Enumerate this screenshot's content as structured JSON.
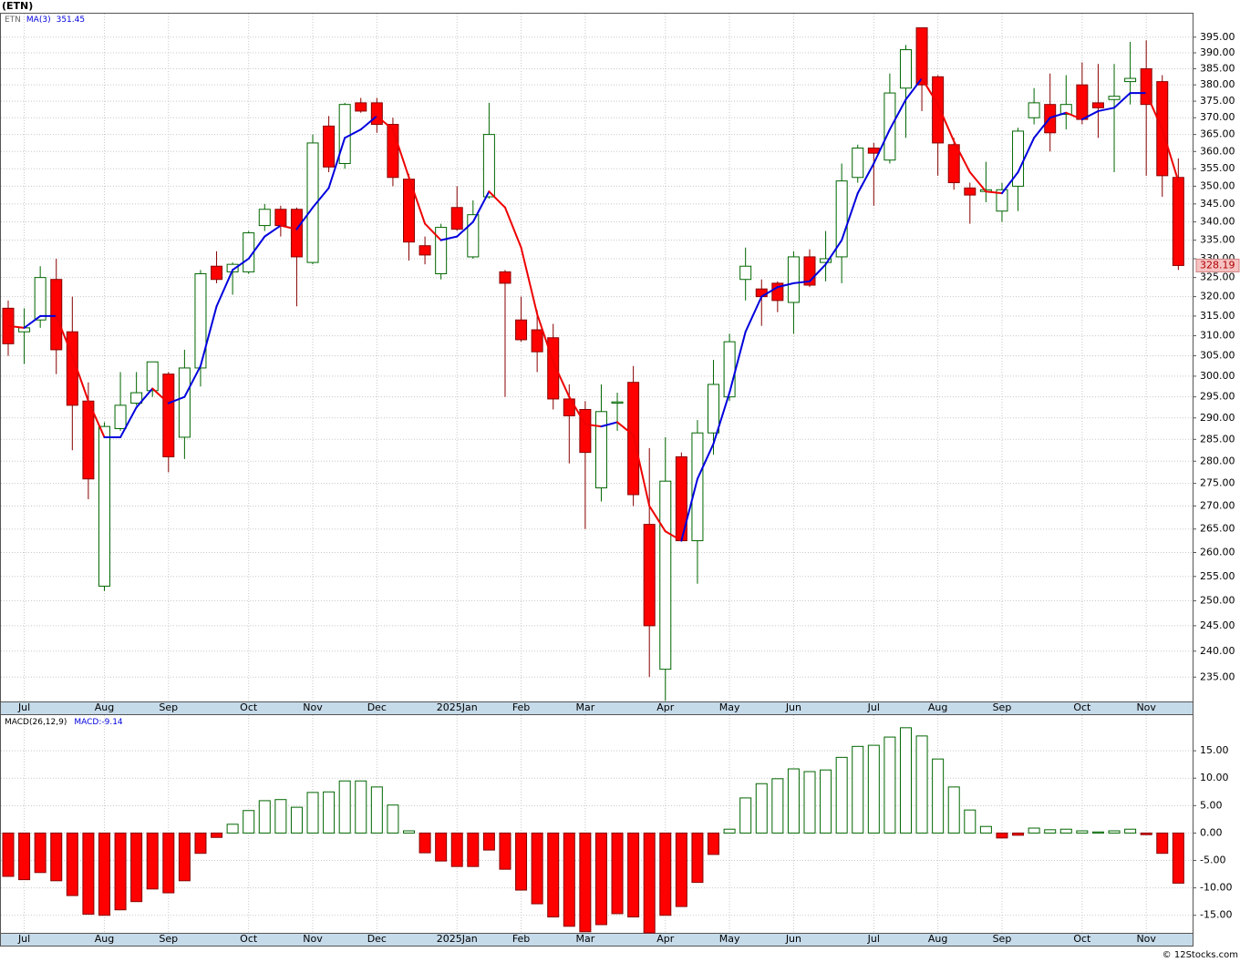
{
  "title": "(ETN)",
  "footer": "© 12Stocks.com",
  "chart_data": [
    {
      "type": "candlestick",
      "symbol": "ETN",
      "log": true,
      "grid": true,
      "up_color": "#006600",
      "down_color": "#ff0000",
      "categories": [
        null,
        "Jul",
        null,
        null,
        null,
        null,
        "Aug",
        null,
        null,
        null,
        "Sep",
        null,
        null,
        null,
        null,
        "Oct",
        null,
        null,
        null,
        "Nov",
        null,
        null,
        null,
        "Dec",
        null,
        null,
        null,
        null,
        "2025Jan",
        null,
        null,
        null,
        "Feb",
        null,
        null,
        null,
        "Mar",
        null,
        null,
        null,
        null,
        "Apr",
        null,
        null,
        null,
        "May",
        null,
        null,
        null,
        "Jun",
        null,
        null,
        null,
        null,
        "Jul",
        null,
        null,
        null,
        "Aug",
        null,
        null,
        null,
        "Sep",
        null,
        null,
        null,
        null,
        "Oct",
        null,
        null,
        null,
        "Nov",
        null,
        null
      ],
      "open": [
        317,
        311,
        314,
        324.5,
        311,
        294,
        253,
        287.5,
        293.5,
        296.5,
        300.5,
        285.5,
        302,
        328,
        326.5,
        326.5,
        339,
        343.5,
        343.5,
        329,
        367.5,
        356.5,
        374.5,
        374.5,
        368,
        352,
        333.5,
        326,
        344,
        330.5,
        347,
        326.5,
        314,
        311.5,
        309.5,
        294.5,
        292,
        274,
        293.5,
        298.5,
        266,
        236.5,
        281,
        262.5,
        286.5,
        295,
        324.5,
        322,
        323.5,
        318.5,
        330.5,
        329,
        330.5,
        352.5,
        361,
        357.5,
        379,
        398,
        382.5,
        362,
        349.5,
        348.5,
        343,
        350,
        370,
        374,
        371,
        380,
        374.5,
        375.5,
        381,
        385,
        381,
        352.5
      ],
      "high": [
        319,
        317,
        328,
        330,
        320,
        298.5,
        289,
        301,
        301,
        303.5,
        301,
        306.5,
        327,
        332,
        329,
        337.5,
        345,
        344.5,
        344,
        365,
        370.5,
        374.5,
        376,
        376,
        370,
        353.5,
        336,
        339.5,
        350,
        346,
        374.5,
        327,
        320,
        316.5,
        313,
        298,
        294,
        298,
        296,
        302.5,
        283,
        285.5,
        282,
        289.5,
        304,
        310.5,
        333,
        324.5,
        324,
        332,
        332.5,
        337.5,
        356.5,
        362,
        362.5,
        383.5,
        392.5,
        398,
        383,
        364,
        351,
        357,
        351,
        367,
        379,
        383.5,
        383,
        387,
        386.5,
        386.5,
        393.5,
        394,
        383,
        358
      ],
      "low": [
        305,
        303,
        312,
        300.5,
        282.5,
        271.5,
        252,
        287,
        293,
        295,
        277.5,
        280.5,
        297.5,
        323.5,
        320.5,
        326,
        337.5,
        336,
        317.5,
        328.5,
        354,
        355,
        371.5,
        365.5,
        350,
        329.5,
        328.5,
        324.5,
        337.5,
        330,
        346.5,
        295,
        308.5,
        301,
        292,
        279.5,
        265,
        271,
        287,
        270,
        235,
        230.5,
        262.5,
        253.5,
        281.5,
        294,
        319,
        312.5,
        316,
        310.5,
        322.5,
        324,
        323.5,
        351,
        344.5,
        356.5,
        364,
        372,
        353,
        349,
        339.5,
        345.5,
        340,
        343,
        368,
        360,
        366.5,
        368,
        364,
        354,
        374,
        353,
        347,
        327
      ],
      "close": [
        308,
        312,
        325,
        306.5,
        293,
        276,
        288,
        293,
        296,
        303.5,
        281,
        302,
        326,
        324.5,
        328.5,
        337,
        343.5,
        339,
        330.5,
        362.5,
        355.5,
        374,
        372,
        368,
        352.5,
        334.5,
        331,
        338.5,
        338,
        342,
        365,
        323.5,
        309,
        306,
        294.5,
        290.5,
        282,
        291.5,
        293.8,
        272.5,
        245,
        275.5,
        262.5,
        286.5,
        298,
        308.5,
        328,
        320,
        319,
        330.5,
        323,
        330,
        351.5,
        361,
        359.5,
        377.5,
        391,
        380,
        362.5,
        351,
        347.5,
        349,
        349,
        366,
        374.5,
        365.5,
        374,
        369.5,
        373,
        376.5,
        382,
        374,
        353,
        328.19
      ],
      "ma": {
        "name": "MA(3)",
        "color": "#0000dd",
        "down_color": "#ee0000",
        "values": [
          312.5,
          312,
          315,
          315,
          305,
          294,
          285.5,
          285.5,
          292.5,
          297,
          293.5,
          295,
          302.5,
          317.5,
          327,
          330,
          336,
          339,
          338,
          344,
          349.5,
          364,
          366.5,
          370.5,
          366.5,
          352.5,
          339.5,
          335,
          336,
          340,
          348.5,
          344,
          333,
          315.5,
          303.5,
          295,
          288.5,
          288,
          289,
          286,
          270,
          264.5,
          262.5,
          276,
          284,
          296,
          311,
          320,
          322.5,
          323.5,
          324,
          328.5,
          335,
          348,
          356.5,
          366.5,
          375.5,
          382,
          374,
          363,
          354,
          348.5,
          348,
          354,
          364,
          370,
          371.5,
          369.5,
          372,
          373,
          377.5,
          377.5,
          366.5,
          351.45
        ]
      },
      "ylim": [
        230.4,
        402.6
      ],
      "yticks": [
        {
          "value": 235,
          "label": "235.00"
        },
        {
          "value": 240,
          "label": "240.00"
        },
        {
          "value": 245,
          "label": "245.00"
        },
        {
          "value": 250,
          "label": "250.00"
        },
        {
          "value": 255,
          "label": "255.00"
        },
        {
          "value": 260,
          "label": "260.00"
        },
        {
          "value": 265,
          "label": "265.00"
        },
        {
          "value": 270,
          "label": "270.00"
        },
        {
          "value": 275,
          "label": "275.00"
        },
        {
          "value": 280,
          "label": "280.00"
        },
        {
          "value": 285,
          "label": "285.00"
        },
        {
          "value": 290,
          "label": "290.00"
        },
        {
          "value": 295,
          "label": "295.00"
        },
        {
          "value": 300,
          "label": "300.00"
        },
        {
          "value": 305,
          "label": "305.00"
        },
        {
          "value": 310,
          "label": "310.00"
        },
        {
          "value": 315,
          "label": "315.00"
        },
        {
          "value": 320,
          "label": "320.00"
        },
        {
          "value": 325,
          "label": "325.00"
        },
        {
          "value": 330,
          "label": "330.00"
        },
        {
          "value": 335,
          "label": "335.00"
        },
        {
          "value": 340,
          "label": "340.00"
        },
        {
          "value": 345,
          "label": "345.00"
        },
        {
          "value": 350,
          "label": "350.00"
        },
        {
          "value": 355,
          "label": "355.00"
        },
        {
          "value": 360,
          "label": "360.00"
        },
        {
          "value": 365,
          "label": "365.00"
        },
        {
          "value": 370,
          "label": "370.00"
        },
        {
          "value": 375,
          "label": "375.00"
        },
        {
          "value": 380,
          "label": "380.00"
        },
        {
          "value": 385,
          "label": "385.00"
        },
        {
          "value": 390,
          "label": "390.00"
        },
        {
          "value": 395,
          "label": "395.00"
        }
      ]
    },
    {
      "type": "macd",
      "name": "MACD(26,12,9)",
      "current_label": "MACD:",
      "grid": true,
      "up_color": "#006600",
      "down_color": "#ff0000",
      "values": [
        -7.9,
        -8.5,
        -7.2,
        -8.7,
        -11.4,
        -14.8,
        -15,
        -14,
        -12.5,
        -10.2,
        -10.9,
        -8.7,
        -3.7,
        -0.8,
        1.6,
        4.1,
        5.9,
        6.1,
        4.7,
        7.4,
        7.5,
        9.5,
        9.5,
        8.4,
        5.1,
        0.4,
        -3.6,
        -5.1,
        -6.1,
        -6.1,
        -3.1,
        -6.6,
        -10.4,
        -12.9,
        -15.3,
        -17,
        -18,
        -16.7,
        -14.7,
        -15.3,
        -18.2,
        -15,
        -13.4,
        -9,
        -3.9,
        0.7,
        6.4,
        9,
        9.9,
        11.7,
        11.2,
        11.5,
        13.8,
        15.8,
        16,
        17.5,
        19.2,
        17.7,
        13.5,
        8.4,
        4.2,
        1.2,
        -0.9,
        -0.4,
        0.9,
        0.6,
        0.7,
        0.4,
        0.2,
        0.4,
        0.7,
        -0.3,
        -3.7,
        -9.14
      ],
      "ylim": [
        -18.2,
        21.5
      ],
      "yticks": [
        {
          "value": -15,
          "label": "-15.00"
        },
        {
          "value": -10,
          "label": "-10.00"
        },
        {
          "value": -5,
          "label": "-5.00"
        },
        {
          "value": 0,
          "label": "0.00"
        },
        {
          "value": 5,
          "label": "5.00"
        },
        {
          "value": 10,
          "label": "10.00"
        },
        {
          "value": 15,
          "label": "15.00"
        }
      ]
    }
  ]
}
